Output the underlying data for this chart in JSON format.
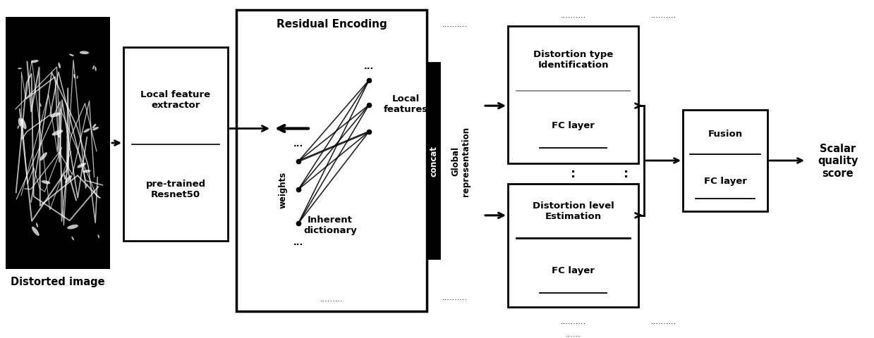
{
  "bg_color": "#ffffff",
  "fig_w": 12.39,
  "fig_h": 4.81,
  "dpi": 100,
  "distorted_image_label": "Distorted image",
  "residual_encoding_title": "Residual Encoding",
  "local_features_label": "Local\nfeatures",
  "inherent_dict_label": "Inherent\ndictionary",
  "weights_label": "weights",
  "concat_label": "concat",
  "global_repr_label": "Global\nrepresentation",
  "scalar_label": "Scalar\nquality\nscore"
}
